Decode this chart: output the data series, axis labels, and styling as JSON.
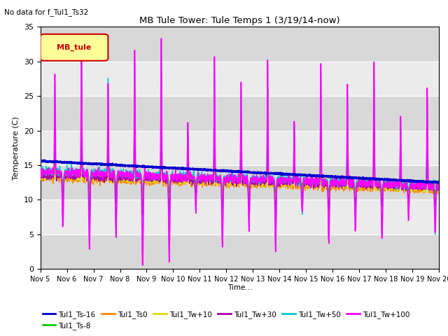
{
  "title": "MB Tule Tower: Tule Temps 1 (3/19/14-now)",
  "subtitle": "No data for f_Tul1_Ts32",
  "ylabel": "Temperature (C)",
  "xlabel": "Time...",
  "ylim": [
    0,
    35
  ],
  "n_days": 15,
  "x_tick_labels": [
    "Nov 5",
    "Nov 6",
    "Nov 7",
    "Nov 8",
    "Nov 9",
    "Nov 10",
    "Nov 11",
    "Nov 12",
    "Nov 13",
    "Nov 14",
    "Nov 15",
    "Nov 16",
    "Nov 17",
    "Nov 18",
    "Nov 19",
    "Nov 20"
  ],
  "legend_box_label": "MB_tule",
  "legend_box_color": "#ffff99",
  "legend_box_border": "#cc0000",
  "background_color": "#e8e8e8",
  "series": {
    "Tul1_Ts-16": {
      "color": "#0000cc",
      "linewidth": 2.0
    },
    "Tul1_Ts-8": {
      "color": "#00cc00",
      "linewidth": 1.0
    },
    "Tul1_Ts0": {
      "color": "#ff8800",
      "linewidth": 1.0
    },
    "Tul1_Tw+10": {
      "color": "#dddd00",
      "linewidth": 1.0
    },
    "Tul1_Tw+30": {
      "color": "#aa00aa",
      "linewidth": 1.0
    },
    "Tul1_Tw+50": {
      "color": "#00cccc",
      "linewidth": 1.0
    },
    "Tul1_Tw+100": {
      "color": "#ff00ff",
      "linewidth": 1.2
    }
  },
  "spike_times": [
    0.55,
    1.55,
    2.55,
    3.55,
    4.55,
    5.55,
    6.55,
    7.55,
    8.55,
    9.55,
    10.55,
    11.55,
    12.55,
    13.55,
    14.55
  ],
  "spike_ups": [
    14,
    18,
    14,
    18,
    20,
    8,
    17,
    14,
    17,
    9,
    17,
    14,
    17,
    10,
    14
  ],
  "spike_downs": [
    8,
    11,
    9,
    13,
    12,
    5,
    10,
    7,
    10,
    5,
    9,
    7,
    8,
    5,
    7
  ]
}
